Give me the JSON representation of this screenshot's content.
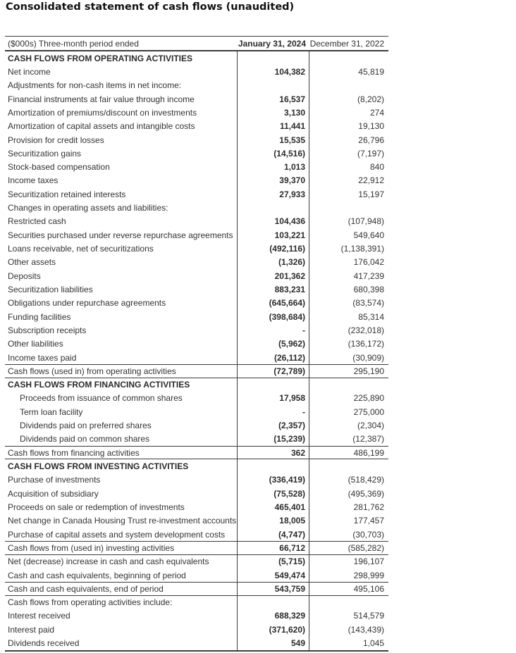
{
  "title": "Consolidated statement of cash flows (unaudited)",
  "colors": {
    "text": "#333333",
    "bold_text": "#2b2b2b",
    "border": "#3c3c3c",
    "background": "#ffffff"
  },
  "table": {
    "columns": {
      "label": "($000s) Three-month period ended",
      "col_2024": "January 31, 2024",
      "col_2022": "December 31, 2022"
    },
    "rows": [
      {
        "label": "CASH FLOWS FROM OPERATING ACTIVITIES",
        "v2024": "",
        "v2022": "",
        "style": "section"
      },
      {
        "label": "Net income",
        "v2024": "104,382",
        "v2022": "45,819",
        "style": "item"
      },
      {
        "label": "Adjustments for non-cash items in net income:",
        "v2024": "",
        "v2022": "",
        "style": "subhead"
      },
      {
        "label": "Financial instruments at fair value through income",
        "v2024": "16,537",
        "v2022": "(8,202)",
        "style": "item"
      },
      {
        "label": "Amortization of premiums/discount on investments",
        "v2024": "3,130",
        "v2022": "274",
        "style": "item"
      },
      {
        "label": "Amortization of capital assets and intangible costs",
        "v2024": "11,441",
        "v2022": "19,130",
        "style": "item"
      },
      {
        "label": "Provision for credit losses",
        "v2024": "15,535",
        "v2022": "26,796",
        "style": "item"
      },
      {
        "label": "Securitization gains",
        "v2024": "(14,516)",
        "v2022": "(7,197)",
        "style": "item"
      },
      {
        "label": "Stock-based compensation",
        "v2024": "1,013",
        "v2022": "840",
        "style": "item"
      },
      {
        "label": "Income taxes",
        "v2024": "39,370",
        "v2022": "22,912",
        "style": "item"
      },
      {
        "label": "Securitization retained interests",
        "v2024": "27,933",
        "v2022": "15,197",
        "style": "item"
      },
      {
        "label": "Changes in operating assets and liabilities:",
        "v2024": "",
        "v2022": "",
        "style": "subhead"
      },
      {
        "label": "Restricted cash",
        "v2024": "104,436",
        "v2022": "(107,948)",
        "style": "item"
      },
      {
        "label": "Securities purchased under reverse repurchase agreements",
        "v2024": "103,221",
        "v2022": "549,640",
        "style": "item"
      },
      {
        "label": "Loans receivable, net of securitizations",
        "v2024": "(492,116)",
        "v2022": "(1,138,391)",
        "style": "item"
      },
      {
        "label": "Other assets",
        "v2024": "(1,326)",
        "v2022": "176,042",
        "style": "item"
      },
      {
        "label": "Deposits",
        "v2024": "201,362",
        "v2022": "417,239",
        "style": "item"
      },
      {
        "label": "Securitization liabilities",
        "v2024": "883,231",
        "v2022": "680,398",
        "style": "item"
      },
      {
        "label": "Obligations under repurchase agreements",
        "v2024": "(645,664)",
        "v2022": "(83,574)",
        "style": "item"
      },
      {
        "label": "Funding facilities",
        "v2024": "(398,684)",
        "v2022": "85,314",
        "style": "item"
      },
      {
        "label": "Subscription receipts",
        "v2024": "-",
        "v2022": "(232,018)",
        "style": "item"
      },
      {
        "label": "Other liabilities",
        "v2024": "(5,962)",
        "v2022": "(136,172)",
        "style": "item"
      },
      {
        "label": "Income taxes paid",
        "v2024": "(26,112)",
        "v2022": "(30,909)",
        "style": "item"
      },
      {
        "label": "Cash flows (used in) from operating activities",
        "v2024": "(72,789)",
        "v2022": "295,190",
        "style": "total"
      },
      {
        "label": "CASH FLOWS FROM FINANCING ACTIVITIES",
        "v2024": "",
        "v2022": "",
        "style": "section"
      },
      {
        "label": "Proceeds from issuance of common shares",
        "v2024": "17,958",
        "v2022": "225,890",
        "style": "indent"
      },
      {
        "label": "Term loan facility",
        "v2024": "-",
        "v2022": "275,000",
        "style": "indent"
      },
      {
        "label": "Dividends paid on preferred shares",
        "v2024": "(2,357)",
        "v2022": "(2,304)",
        "style": "indent"
      },
      {
        "label": "Dividends paid on common shares",
        "v2024": "(15,239)",
        "v2022": "(12,387)",
        "style": "indent"
      },
      {
        "label": "Cash flows from financing activities",
        "v2024": "362",
        "v2022": "486,199",
        "style": "total"
      },
      {
        "label": "CASH FLOWS FROM INVESTING ACTIVITIES",
        "v2024": "",
        "v2022": "",
        "style": "section"
      },
      {
        "label": "Purchase of investments",
        "v2024": "(336,419)",
        "v2022": "(518,429)",
        "style": "item"
      },
      {
        "label": "Acquisition of subsidiary",
        "v2024": "(75,528)",
        "v2022": "(495,369)",
        "style": "item"
      },
      {
        "label": "Proceeds on sale or redemption of investments",
        "v2024": "465,401",
        "v2022": "281,762",
        "style": "item"
      },
      {
        "label": "Net change in Canada Housing Trust re-investment accounts",
        "v2024": "18,005",
        "v2022": "177,457",
        "style": "item"
      },
      {
        "label": "Purchase of capital assets and system development costs",
        "v2024": "(4,747)",
        "v2022": "(30,703)",
        "style": "item"
      },
      {
        "label": "Cash flows from (used in) investing activities",
        "v2024": "66,712",
        "v2022": "(585,282)",
        "style": "total"
      },
      {
        "label": "Net (decrease) increase in cash and cash equivalents",
        "v2024": "(5,715)",
        "v2022": "196,107",
        "style": "item"
      },
      {
        "label": "Cash and cash equivalents, beginning of period",
        "v2024": "549,474",
        "v2022": "298,999",
        "style": "item"
      },
      {
        "label": "Cash and cash equivalents, end of period",
        "v2024": "543,759",
        "v2022": "495,106",
        "style": "total"
      },
      {
        "label": "Cash flows from operating activities include:",
        "v2024": "",
        "v2022": "",
        "style": "subhead"
      },
      {
        "label": "Interest received",
        "v2024": "688,329",
        "v2022": "514,579",
        "style": "item"
      },
      {
        "label": "Interest paid",
        "v2024": "(371,620)",
        "v2022": "(143,439)",
        "style": "item"
      },
      {
        "label": "Dividends received",
        "v2024": "549",
        "v2022": "1,045",
        "style": "item"
      }
    ]
  }
}
